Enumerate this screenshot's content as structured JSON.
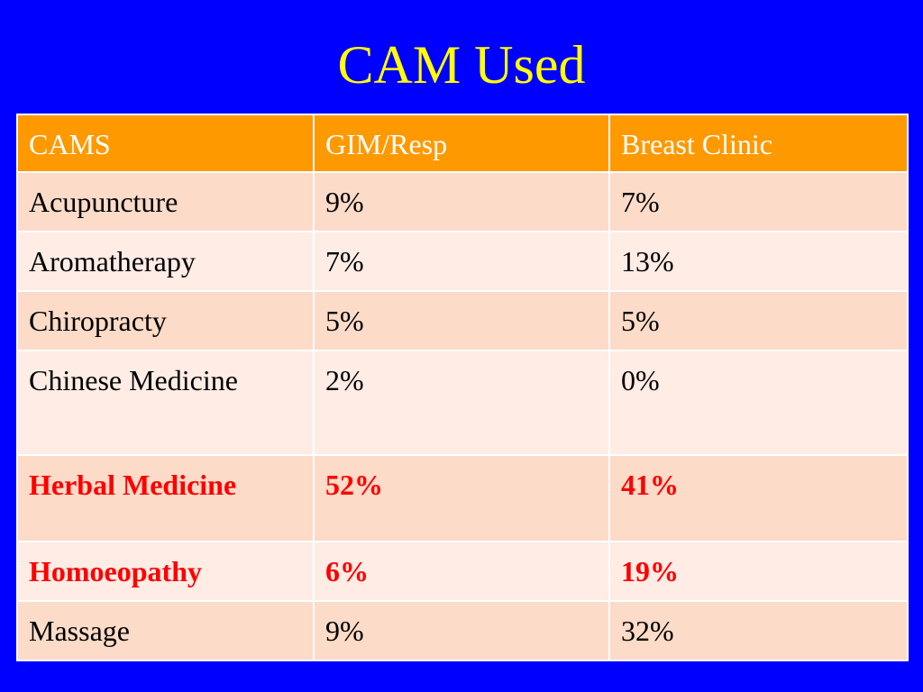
{
  "title": "CAM Used",
  "colors": {
    "background": "#0000ff",
    "title": "#ffff00",
    "header_bg": "#ff9900",
    "header_text": "#ffffff",
    "row_dark": "#fcdbc8",
    "row_light": "#feece5",
    "highlight_text": "#ff0000"
  },
  "table": {
    "headers": [
      "CAMS",
      "GIM/Resp",
      "Breast Clinic"
    ],
    "rows": [
      {
        "cells": [
          "Acupuncture",
          "9%",
          "7%"
        ],
        "highlight": false
      },
      {
        "cells": [
          "Aromatherapy",
          "7%",
          "13%"
        ],
        "highlight": false
      },
      {
        "cells": [
          "Chiropracty",
          "5%",
          "5%"
        ],
        "highlight": false
      },
      {
        "cells": [
          "Chinese Medicine",
          "2%",
          "0%"
        ],
        "highlight": false
      },
      {
        "cells": [
          "Herbal Medicine",
          "52%",
          "41%"
        ],
        "highlight": true
      },
      {
        "cells": [
          "Homoeopathy",
          "6%",
          "19%"
        ],
        "highlight": true
      },
      {
        "cells": [
          "Massage",
          "9%",
          "32%"
        ],
        "highlight": false
      }
    ]
  }
}
